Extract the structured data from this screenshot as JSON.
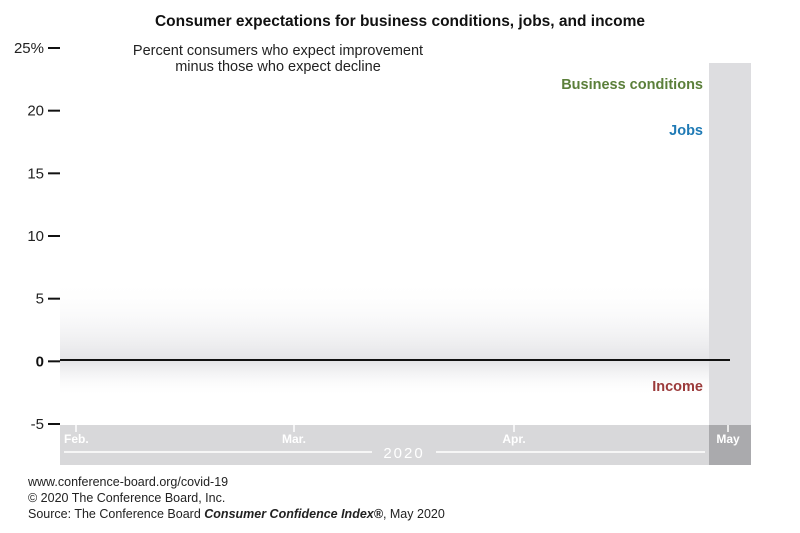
{
  "colors": {
    "business": "#5b7f3a",
    "jobs": "#1f7ab5",
    "income": "#9b3a3a",
    "axis_band": "#d8d8da",
    "axis_band_dark": "#aaaaad",
    "highlight_band": "#dddde0"
  },
  "chart_data": {
    "type": "line",
    "title": "Consumer expectations for business conditions, jobs, and income",
    "subtitle_line1": "Percent consumers who expect improvement",
    "subtitle_line2": "minus those who expect decline",
    "x_categories": [
      "Feb.",
      "Mar.",
      "Apr.",
      "May"
    ],
    "year_label": "2020",
    "ylim": [
      -5,
      25
    ],
    "yticks": [
      {
        "value": 25,
        "label": "25%"
      },
      {
        "value": 20,
        "label": "20"
      },
      {
        "value": 15,
        "label": "15"
      },
      {
        "value": 10,
        "label": "10"
      },
      {
        "value": 5,
        "label": "5"
      },
      {
        "value": 0,
        "label": "0"
      },
      {
        "value": -5,
        "label": "-5"
      }
    ],
    "highlight_category": "May",
    "series": [
      {
        "name": "Business conditions",
        "color_key": "business",
        "values": []
      },
      {
        "name": "Jobs",
        "color_key": "jobs",
        "values": []
      },
      {
        "name": "Income",
        "color_key": "income",
        "values": []
      }
    ]
  },
  "footer": {
    "url": "www.conference-board.org/covid-19",
    "copyright": "© 2020 The Conference Board, Inc.",
    "source_prefix": "Source:  The Conference Board ",
    "source_title": "Consumer Confidence Index®",
    "source_suffix": ", May 2020"
  }
}
